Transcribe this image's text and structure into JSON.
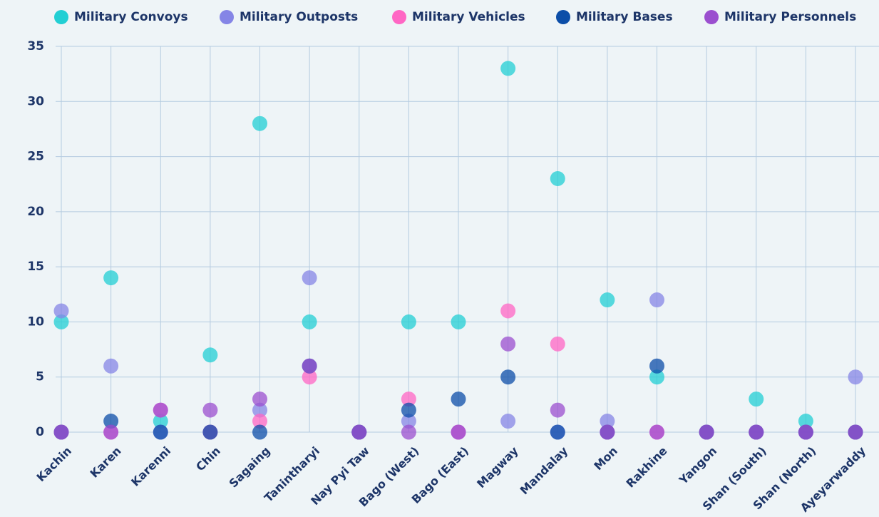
{
  "chart_data": {
    "type": "dot",
    "categories": [
      "Kachin",
      "Karen",
      "Karenni",
      "Chin",
      "Sagaing",
      "Tanintharyi",
      "Nay Pyi Taw",
      "Bago (West)",
      "Bago (East)",
      "Magway",
      "Mandalay",
      "Mon",
      "Rakhine",
      "Yangon",
      "Shan (South)",
      "Shan (North)",
      "Ayeyarwaddy"
    ],
    "series": [
      {
        "name": "Military Convoys",
        "color": "#22cfd4",
        "values": [
          10,
          14,
          1,
          7,
          28,
          10,
          0,
          10,
          10,
          33,
          23,
          12,
          5,
          0,
          3,
          1,
          0
        ]
      },
      {
        "name": "Military Outposts",
        "color": "#8585e6",
        "values": [
          11,
          6,
          0,
          0,
          2,
          14,
          0,
          1,
          0,
          1,
          0,
          1,
          12,
          0,
          0,
          0,
          5
        ]
      },
      {
        "name": "Military Vehicles",
        "color": "#ff66c4",
        "values": [
          0,
          0,
          2,
          0,
          1,
          5,
          0,
          3,
          0,
          11,
          8,
          0,
          0,
          0,
          0,
          0,
          0
        ]
      },
      {
        "name": "Military Bases",
        "color": "#0c4ea8",
        "values": [
          0,
          1,
          0,
          0,
          0,
          6,
          0,
          2,
          3,
          5,
          0,
          0,
          6,
          0,
          0,
          0,
          0
        ]
      },
      {
        "name": "Military Personnels",
        "color": "#9b4fcf",
        "values": [
          0,
          0,
          2,
          2,
          3,
          6,
          0,
          0,
          0,
          8,
          2,
          0,
          0,
          0,
          0,
          0,
          0
        ]
      }
    ],
    "ylim": [
      0,
      35
    ],
    "yticks": [
      0,
      5,
      10,
      15,
      20,
      25,
      30,
      35
    ],
    "grid": true,
    "legend": "top"
  }
}
